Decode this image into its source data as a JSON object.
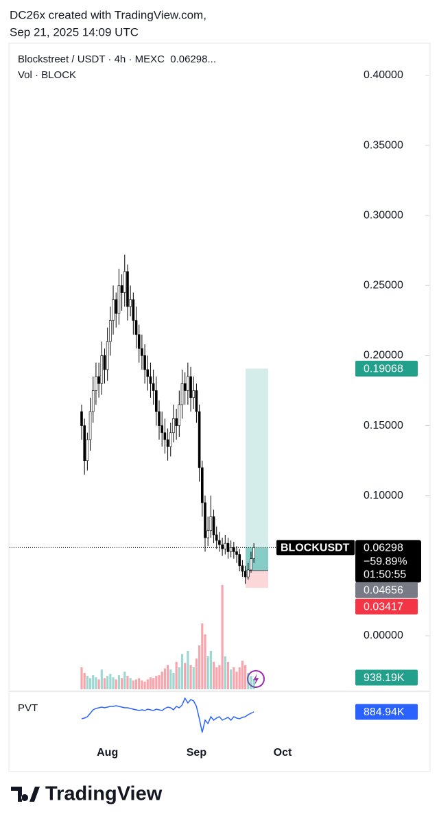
{
  "header": {
    "line1": "DC26x created with TradingView.com,",
    "line2": "Sep 21, 2025 14:09 UTC"
  },
  "footer": {
    "brand": "TradingView"
  },
  "chart_data": {
    "type": "candlestick",
    "title": "Blockstreet / USDT · 4h · MEXC  0.06298...",
    "categories": [
      null,
      null,
      null,
      null,
      null,
      null,
      null,
      null,
      null,
      "Aug",
      null,
      null,
      null,
      null,
      null,
      null,
      null,
      null,
      null,
      null,
      null,
      null,
      null,
      null,
      null,
      null,
      null,
      null,
      null,
      null,
      null,
      null,
      null,
      null,
      null,
      null,
      null,
      null,
      null,
      null,
      "Sep",
      null,
      null,
      null,
      null,
      null,
      null,
      null,
      null,
      null,
      null,
      null,
      null,
      null,
      null,
      null,
      null,
      null,
      null,
      null,
      null,
      null,
      null,
      null,
      null,
      null,
      null,
      null,
      null,
      null,
      "Oct"
    ],
    "open": [
      0.16,
      0.15,
      0.125,
      0.14,
      0.16,
      0.175,
      0.185,
      0.18,
      0.2,
      0.19,
      0.21,
      0.225,
      0.24,
      0.23,
      0.25,
      0.245,
      0.26,
      0.235,
      0.24,
      0.225,
      0.215,
      0.205,
      0.2,
      0.19,
      0.185,
      0.18,
      0.175,
      0.16,
      0.15,
      0.145,
      0.14,
      0.135,
      0.145,
      0.155,
      0.15,
      0.165,
      0.18,
      0.175,
      0.185,
      0.17,
      0.175,
      0.16,
      0.12,
      0.095,
      0.07,
      0.075,
      0.085,
      0.072,
      0.068,
      0.065,
      0.062,
      0.066,
      0.06,
      0.063,
      0.06,
      0.058,
      0.05,
      0.046,
      0.042,
      0.047,
      0.055,
      null,
      null,
      null,
      null,
      null,
      null,
      null,
      null,
      null,
      null
    ],
    "high": [
      0.165,
      0.155,
      0.145,
      0.17,
      0.185,
      0.195,
      0.195,
      0.21,
      0.205,
      0.22,
      0.235,
      0.25,
      0.245,
      0.262,
      0.258,
      0.272,
      0.265,
      0.25,
      0.245,
      0.235,
      0.222,
      0.215,
      0.208,
      0.2,
      0.195,
      0.19,
      0.185,
      0.168,
      0.16,
      0.155,
      0.148,
      0.152,
      0.165,
      0.162,
      0.175,
      0.19,
      0.188,
      0.195,
      0.192,
      0.185,
      0.18,
      0.165,
      0.125,
      0.1,
      0.085,
      0.1,
      0.09,
      0.078,
      0.074,
      0.07,
      0.072,
      0.07,
      0.068,
      0.067,
      0.064,
      0.062,
      0.054,
      0.05,
      0.052,
      0.06,
      0.066,
      null,
      null,
      null,
      null,
      null,
      null,
      null,
      null,
      null,
      null
    ],
    "low": [
      0.14,
      0.115,
      0.118,
      0.132,
      0.152,
      0.165,
      0.17,
      0.172,
      0.18,
      0.182,
      0.2,
      0.215,
      0.22,
      0.222,
      0.232,
      0.235,
      0.225,
      0.228,
      0.215,
      0.205,
      0.195,
      0.19,
      0.18,
      0.175,
      0.17,
      0.165,
      0.15,
      0.14,
      0.135,
      0.13,
      0.125,
      0.128,
      0.138,
      0.14,
      0.142,
      0.155,
      0.165,
      0.165,
      0.16,
      0.162,
      0.152,
      0.11,
      0.085,
      0.06,
      0.064,
      0.07,
      0.066,
      0.062,
      0.06,
      0.057,
      0.058,
      0.055,
      0.056,
      0.055,
      0.052,
      0.046,
      0.042,
      0.037,
      0.04,
      0.045,
      0.052,
      null,
      null,
      null,
      null,
      null,
      null,
      null,
      null,
      null,
      null
    ],
    "close": [
      0.15,
      0.125,
      0.14,
      0.16,
      0.175,
      0.185,
      0.18,
      0.2,
      0.19,
      0.21,
      0.225,
      0.24,
      0.23,
      0.25,
      0.245,
      0.26,
      0.235,
      0.24,
      0.225,
      0.215,
      0.205,
      0.2,
      0.19,
      0.185,
      0.18,
      0.175,
      0.16,
      0.15,
      0.145,
      0.14,
      0.135,
      0.145,
      0.155,
      0.15,
      0.165,
      0.18,
      0.175,
      0.185,
      0.17,
      0.175,
      0.16,
      0.12,
      0.095,
      0.07,
      0.075,
      0.085,
      0.072,
      0.068,
      0.065,
      0.062,
      0.066,
      0.06,
      0.063,
      0.06,
      0.058,
      0.05,
      0.046,
      0.042,
      0.047,
      0.055,
      0.06298,
      null,
      null,
      null,
      null,
      null,
      null,
      null,
      null,
      null,
      null
    ],
    "up_color": "#ffffff",
    "down_color": "#000000",
    "wick_color": "#000000",
    "ylim": [
      -0.0382,
      0.4225
    ],
    "yticks": [
      {
        "value": 0,
        "label": "0.00000"
      },
      {
        "value": 0.1,
        "label": "0.10000"
      },
      {
        "value": 0.15,
        "label": "0.15000"
      },
      {
        "value": 0.2,
        "label": "0.20000"
      },
      {
        "value": 0.25,
        "label": "0.25000"
      },
      {
        "value": 0.3,
        "label": "0.30000"
      },
      {
        "value": 0.35,
        "label": "0.35000"
      },
      {
        "value": 0.4,
        "label": "0.40000"
      }
    ],
    "last": {
      "symbol": "BLOCKUSDT",
      "value": 0.06298,
      "change": "−59.89%",
      "countdown": "01:50:55",
      "color": "#000000"
    },
    "position": {
      "target": 0.19068,
      "entry": 0.04656,
      "stop": 0.03417,
      "target_color": "#22a08b",
      "entry_color": "#787b86",
      "stop_color": "#f23645"
    },
    "volume": {
      "name": "Vol · BLOCK",
      "values": [
        2000000,
        1500000,
        1200000,
        1000000,
        1300000,
        1100000,
        900000,
        1800000,
        1000000,
        1200000,
        1400000,
        1100000,
        900000,
        1300000,
        1000000,
        1600000,
        1200000,
        1000000,
        800000,
        900000,
        1000000,
        800000,
        700000,
        900000,
        1100000,
        1000000,
        1200000,
        1300000,
        1600000,
        1900000,
        2200000,
        1800000,
        1500000,
        2500000,
        2000000,
        3200000,
        2400000,
        3500000,
        2200000,
        2000000,
        2800000,
        4000000,
        6000000,
        5000000,
        3000000,
        3500000,
        2500000,
        2000000,
        2200000,
        9500000,
        3000000,
        2500000,
        1800000,
        2000000,
        1600000,
        2000000,
        2600000,
        2200000,
        1500000,
        1200000,
        938190,
        null,
        null,
        null,
        null,
        null,
        null,
        null,
        null,
        null,
        null
      ],
      "ylim": [
        0,
        6250000
      ],
      "up_color": "rgba(38,166,154,0.45)",
      "down_color": "rgba(242,54,69,0.45)",
      "tag": {
        "value": 938190,
        "label": "938.19K",
        "color": "#22a08b"
      }
    },
    "pvt": {
      "name": "PVT",
      "color": "#2962ff",
      "values": [
        147000,
        221000,
        369000,
        737000,
        1106000,
        1254000,
        1327000,
        1401000,
        1327000,
        1401000,
        1475000,
        1475000,
        1549000,
        1475000,
        1401000,
        1327000,
        1327000,
        1254000,
        1180000,
        1106000,
        1032000,
        1106000,
        1032000,
        1180000,
        1106000,
        1032000,
        1180000,
        1106000,
        1032000,
        1254000,
        1401000,
        1327000,
        1106000,
        1475000,
        1327000,
        1622000,
        2360000,
        1844000,
        2212000,
        2065000,
        1475000,
        147000,
        -1327000,
        0,
        -369000,
        369000,
        0,
        221000,
        369000,
        0,
        147000,
        295000,
        0,
        369000,
        221000,
        147000,
        295000,
        369000,
        590000,
        737000,
        884940,
        null,
        null,
        null,
        null,
        null,
        null,
        null,
        null,
        null,
        null
      ],
      "ylim": [
        -1840000,
        2800000
      ],
      "tag": {
        "value": 884940,
        "label": "884.94K"
      }
    }
  }
}
